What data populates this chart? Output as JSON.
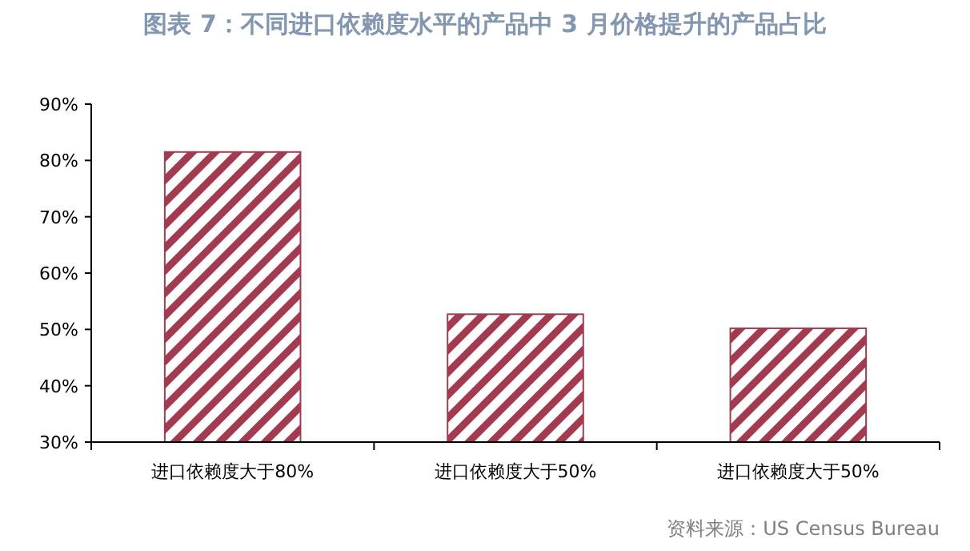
{
  "chart_data": {
    "type": "bar",
    "title": "图表 7：不同进口依赖度水平的产品中 3 月价格提升的产品占比",
    "categories": [
      "进口依赖度大于80%",
      "进口依赖度大于50%",
      "进口依赖度大于50%"
    ],
    "values": [
      81.5,
      52.7,
      50.2
    ],
    "color": "#a33b50",
    "ylim": [
      30,
      90
    ],
    "yticks": [
      {
        "value": 30,
        "label": "30%"
      },
      {
        "value": 40,
        "label": "40%"
      },
      {
        "value": 50,
        "label": "50%"
      },
      {
        "value": 60,
        "label": "60%"
      },
      {
        "value": 70,
        "label": "70%"
      },
      {
        "value": 80,
        "label": "80%"
      },
      {
        "value": 90,
        "label": "90%"
      }
    ],
    "grid": false,
    "annotations": [
      "资料来源：US Census Bureau"
    ]
  }
}
